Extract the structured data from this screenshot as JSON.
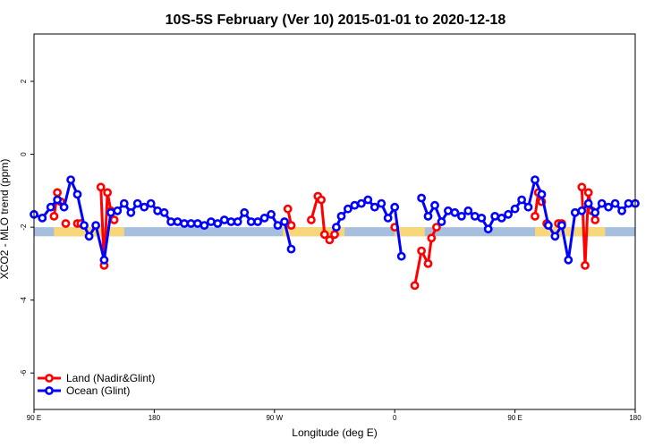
{
  "chart_data": {
    "type": "line",
    "title": "10S-5S February (Ver 10)   2015-01-01 to 2020-12-18",
    "xlabel": "Longitude (deg E)",
    "ylabel": "XCO2 - MLO trend (ppm)",
    "xlim": [
      90,
      450
    ],
    "ylim": [
      -7.0,
      3.3
    ],
    "x_ticks": [
      {
        "value": 90,
        "label": "90 E"
      },
      {
        "value": 162,
        "label": "180"
      },
      {
        "value": 234,
        "label": "90 W"
      },
      {
        "value": 306,
        "label": "0"
      },
      {
        "value": 378,
        "label": "90 E"
      },
      {
        "value": 450,
        "label": "180"
      }
    ],
    "y_ticks": [
      {
        "value": -6,
        "label": "-6"
      },
      {
        "value": -4,
        "label": "-4"
      },
      {
        "value": -2,
        "label": "-2"
      },
      {
        "value": 0,
        "label": "0"
      },
      {
        "value": 2,
        "label": "2"
      }
    ],
    "band": {
      "ymin": -2.25,
      "ymax": -2.0,
      "color": "#a6bfdd"
    },
    "land_patches": [
      {
        "x0": 102,
        "x1": 144,
        "color": "#f7d77a"
      },
      {
        "x0": 239,
        "x1": 276,
        "color": "#f7d77a"
      },
      {
        "x0": 306,
        "x1": 324,
        "color": "#f7d77a"
      },
      {
        "x0": 390,
        "x1": 432,
        "color": "#f7d77a"
      }
    ],
    "series": [
      {
        "name": "Land (Nadir&Glint)",
        "color": "#ff0000",
        "segments": [
          [
            [
              102,
              -1.7
            ],
            [
              104,
              -1.05
            ],
            [
              106,
              -1.3
            ]
          ],
          [
            [
              109,
              -1.9
            ]
          ],
          [
            [
              116,
              -1.9
            ],
            [
              118,
              -1.9
            ]
          ],
          [
            [
              130,
              -0.9
            ],
            [
              132,
              -3.05
            ],
            [
              134,
              -1.05
            ],
            [
              136,
              -1.55
            ],
            [
              138,
              -1.8
            ]
          ],
          [
            [
              242,
              -1.5
            ],
            [
              244,
              -1.95
            ]
          ],
          [
            [
              256,
              -1.8
            ],
            [
              260,
              -1.15
            ],
            [
              262,
              -1.25
            ],
            [
              264,
              -2.2
            ],
            [
              267,
              -2.35
            ],
            [
              270,
              -2.2
            ]
          ],
          [
            [
              306,
              -2.0
            ]
          ],
          [
            [
              318,
              -3.6
            ],
            [
              322,
              -2.65
            ],
            [
              326,
              -3.0
            ],
            [
              328,
              -2.3
            ],
            [
              331,
              -2.0
            ]
          ],
          [
            [
              390,
              -1.7
            ],
            [
              392,
              -1.05
            ],
            [
              394,
              -1.3
            ]
          ],
          [
            [
              397,
              -1.9
            ]
          ],
          [
            [
              404,
              -1.9
            ],
            [
              406,
              -1.9
            ]
          ],
          [
            [
              418,
              -0.9
            ],
            [
              420,
              -3.05
            ],
            [
              422,
              -1.05
            ],
            [
              424,
              -1.55
            ],
            [
              426,
              -1.8
            ]
          ]
        ]
      },
      {
        "name": "Ocean (Glint)",
        "color": "#0000ff",
        "segments": [
          [
            [
              90,
              -1.65
            ],
            [
              95,
              -1.75
            ],
            [
              100,
              -1.45
            ],
            [
              104,
              -1.25
            ],
            [
              108,
              -1.45
            ],
            [
              112,
              -0.7
            ],
            [
              116,
              -1.1
            ],
            [
              120,
              -1.95
            ],
            [
              123,
              -2.25
            ],
            [
              127,
              -1.95
            ],
            [
              132,
              -2.9
            ],
            [
              136,
              -1.6
            ],
            [
              140,
              -1.55
            ],
            [
              144,
              -1.35
            ],
            [
              148,
              -1.6
            ],
            [
              152,
              -1.35
            ],
            [
              156,
              -1.45
            ],
            [
              160,
              -1.35
            ],
            [
              164,
              -1.55
            ],
            [
              168,
              -1.6
            ],
            [
              172,
              -1.85
            ],
            [
              176,
              -1.85
            ],
            [
              180,
              -1.9
            ],
            [
              184,
              -1.9
            ],
            [
              188,
              -1.9
            ],
            [
              192,
              -1.95
            ],
            [
              196,
              -1.85
            ],
            [
              200,
              -1.9
            ],
            [
              204,
              -1.8
            ],
            [
              208,
              -1.85
            ],
            [
              212,
              -1.85
            ],
            [
              216,
              -1.6
            ],
            [
              220,
              -1.85
            ],
            [
              224,
              -1.85
            ],
            [
              228,
              -1.75
            ],
            [
              232,
              -1.65
            ],
            [
              236,
              -1.95
            ],
            [
              240,
              -1.85
            ],
            [
              244,
              -2.6
            ]
          ],
          [
            [
              271,
              -2.0
            ],
            [
              274,
              -1.7
            ],
            [
              278,
              -1.5
            ],
            [
              282,
              -1.4
            ],
            [
              286,
              -1.35
            ],
            [
              290,
              -1.25
            ],
            [
              294,
              -1.45
            ],
            [
              298,
              -1.35
            ],
            [
              302,
              -1.75
            ],
            [
              306,
              -1.45
            ],
            [
              310,
              -2.8
            ]
          ],
          [
            [
              322,
              -1.2
            ],
            [
              326,
              -1.7
            ],
            [
              330,
              -1.4
            ],
            [
              334,
              -1.85
            ],
            [
              338,
              -1.55
            ],
            [
              342,
              -1.6
            ],
            [
              346,
              -1.7
            ],
            [
              350,
              -1.55
            ],
            [
              354,
              -1.7
            ],
            [
              358,
              -1.75
            ],
            [
              362,
              -2.05
            ],
            [
              366,
              -1.7
            ],
            [
              370,
              -1.75
            ],
            [
              374,
              -1.65
            ],
            [
              378,
              -1.5
            ],
            [
              382,
              -1.25
            ],
            [
              386,
              -1.45
            ],
            [
              390,
              -0.7
            ],
            [
              394,
              -1.1
            ],
            [
              398,
              -1.95
            ],
            [
              402,
              -2.25
            ],
            [
              406,
              -1.95
            ],
            [
              410,
              -2.9
            ],
            [
              414,
              -1.6
            ],
            [
              418,
              -1.55
            ],
            [
              422,
              -1.35
            ],
            [
              426,
              -1.6
            ],
            [
              430,
              -1.35
            ],
            [
              434,
              -1.45
            ],
            [
              438,
              -1.35
            ],
            [
              442,
              -1.55
            ],
            [
              446,
              -1.35
            ],
            [
              450,
              -1.35
            ]
          ]
        ]
      }
    ],
    "legend": {
      "position": "bottom-left",
      "entries": [
        "Land (Nadir&Glint)",
        "Ocean (Glint)"
      ]
    },
    "grid": false
  }
}
